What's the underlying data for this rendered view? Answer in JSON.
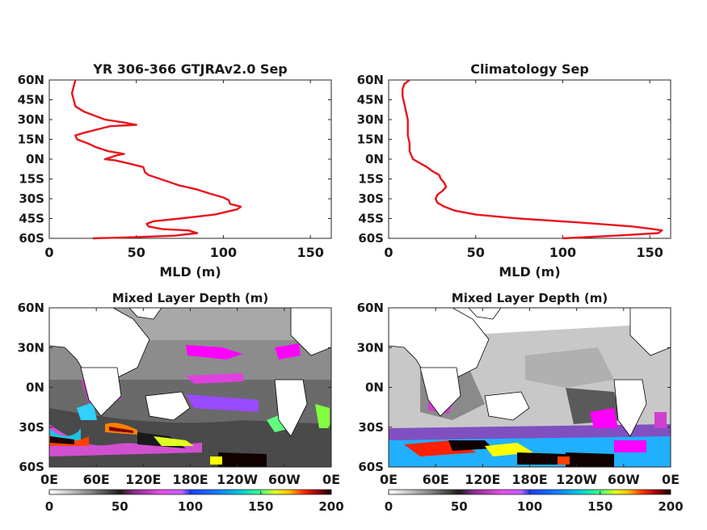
{
  "chart_data": [
    {
      "type": "line",
      "title": "YR 306-366 GTJRAv2.0 Sep",
      "xlabel": "MLD (m)",
      "ylabel": "",
      "xlim": [
        0,
        162
      ],
      "ylim": [
        -60,
        60
      ],
      "xticks": [
        "0",
        "50",
        "100",
        "150"
      ],
      "yticks": [
        "60N",
        "45N",
        "30N",
        "15N",
        "0N",
        "15S",
        "30S",
        "45S",
        "60S"
      ],
      "line_color": "#e8141c",
      "series": [
        {
          "x": [
            25,
            50,
            72,
            85,
            80,
            65,
            57,
            56,
            60,
            75,
            95,
            108,
            110,
            104,
            103,
            100,
            92,
            85,
            75,
            57,
            55,
            54,
            45,
            38,
            32,
            39,
            43,
            34,
            27,
            22,
            16,
            15,
            20,
            35,
            50,
            42,
            32,
            20,
            15,
            14,
            13,
            14,
            15
          ],
          "y": [
            -60,
            -59,
            -58,
            -56,
            -54,
            -53,
            -51,
            -49,
            -47,
            -45,
            -42,
            -38,
            -36,
            -34,
            -31,
            -29,
            -26,
            -23,
            -20,
            -12,
            -10,
            -6,
            -3,
            -1,
            0,
            3,
            4,
            6,
            9,
            12,
            15,
            18,
            20,
            25,
            26,
            28,
            30,
            36,
            40,
            45,
            50,
            55,
            60
          ]
        }
      ]
    },
    {
      "type": "line",
      "title": "Climatology Sep",
      "xlabel": "MLD (m)",
      "ylabel": "",
      "xlim": [
        0,
        162
      ],
      "ylim": [
        -60,
        60
      ],
      "xticks": [
        "0",
        "50",
        "100",
        "150"
      ],
      "yticks": [
        "60N",
        "45N",
        "30N",
        "15N",
        "0N",
        "15S",
        "30S",
        "45S",
        "60S"
      ],
      "line_color": "#e8141c",
      "series": [
        {
          "x": [
            100,
            130,
            155,
            157,
            152,
            140,
            110,
            75,
            50,
            38,
            32,
            28,
            27,
            28,
            31,
            33,
            32,
            30,
            29,
            25,
            22,
            18,
            14,
            13,
            12,
            12,
            11,
            11,
            11,
            10,
            9,
            8,
            8,
            9,
            12
          ],
          "y": [
            -60,
            -58,
            -56,
            -54,
            -53,
            -51,
            -48,
            -45,
            -42,
            -39,
            -36,
            -33,
            -30,
            -27,
            -24,
            -21,
            -18,
            -15,
            -12,
            -9,
            -6,
            -3,
            0,
            3,
            6,
            12,
            18,
            24,
            30,
            36,
            42,
            48,
            53,
            57,
            60
          ]
        }
      ]
    },
    {
      "type": "heatmap",
      "title": "Mixed Layer Depth (m)",
      "xticks": [
        "0E",
        "60E",
        "120E",
        "180E",
        "120W",
        "60W",
        "0E"
      ],
      "yticks": [
        "60N",
        "30N",
        "0N",
        "30S",
        "60S"
      ],
      "colorbar_ticks": [
        "0",
        "50",
        "100",
        "150",
        "200"
      ],
      "clim": [
        0,
        200
      ]
    },
    {
      "type": "heatmap",
      "title": "Mixed Layer Depth (m)",
      "xticks": [
        "0E",
        "60E",
        "120E",
        "180E",
        "120W",
        "60W",
        "0E"
      ],
      "yticks": [
        "60N",
        "30N",
        "0N",
        "30S",
        "60S"
      ],
      "colorbar_ticks": [
        "0",
        "50",
        "100",
        "150",
        "200"
      ],
      "clim": [
        0,
        200
      ]
    }
  ],
  "colormap": [
    "#ffffff",
    "#b8b8b8",
    "#5a5a5a",
    "#1a1a1a",
    "#7a1e7a",
    "#d35bd3",
    "#ff00ff",
    "#4060ff",
    "#1a3cff",
    "#00c8ff",
    "#40e0c0",
    "#80ff40",
    "#ffff00",
    "#ff8000",
    "#ff0000",
    "#800000",
    "#1a0000"
  ]
}
